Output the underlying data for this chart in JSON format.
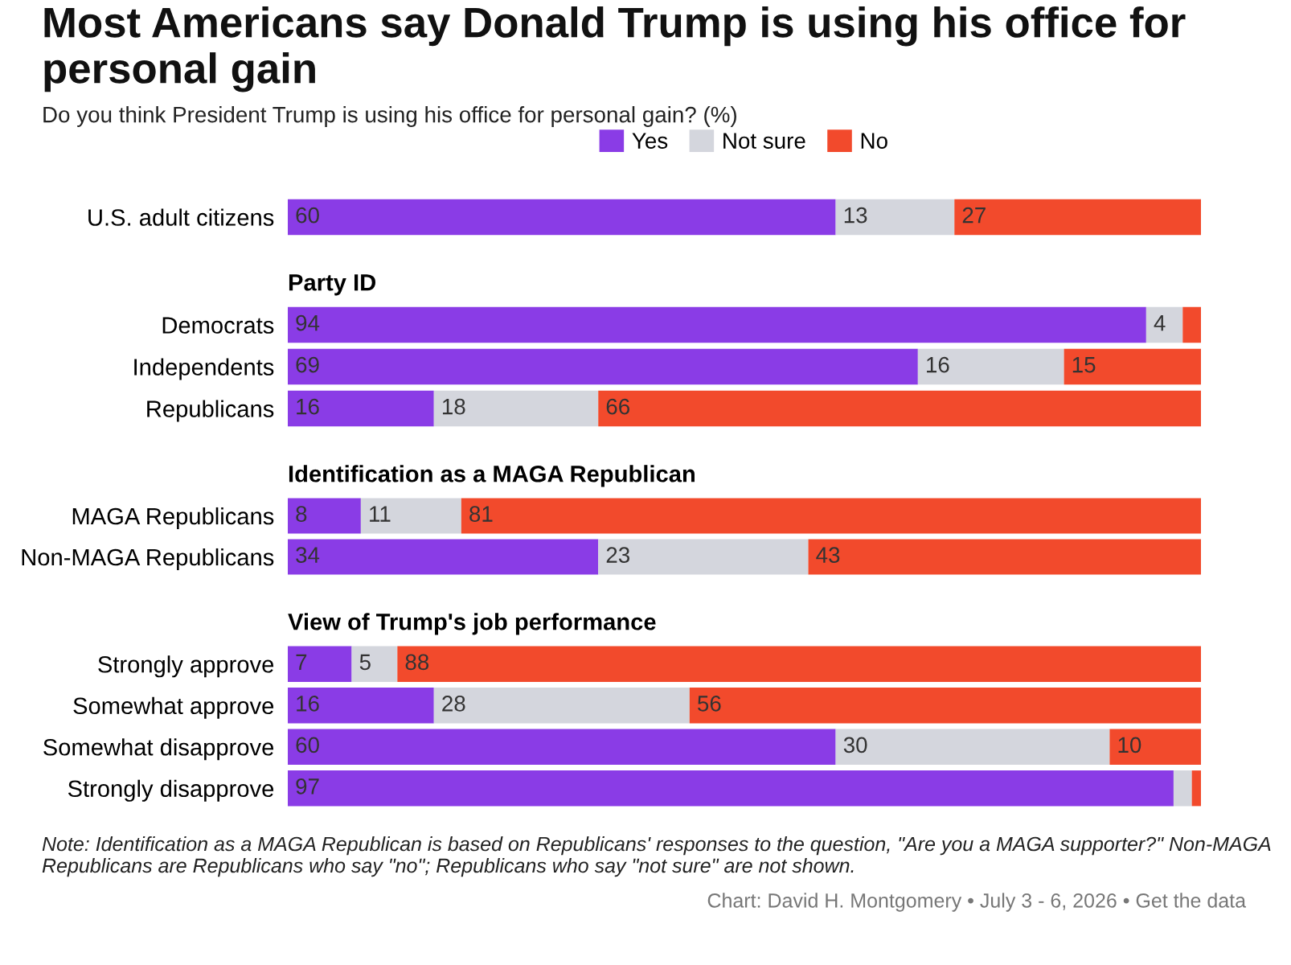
{
  "chart_data": [
    {
      "type": "bar",
      "orientation": "horizontal",
      "stacked": true,
      "title": "Most Americans say Donald Trump is using his office for personal gain",
      "subtitle": "Do you think President Trump is using his office for personal gain? (%)",
      "legend": "top",
      "tick_labels": "y",
      "xlim": [
        0,
        100
      ],
      "categories": [
        "U.S. adult citizens"
      ],
      "series": [
        {
          "name": "Yes",
          "color": "#8a3ce6",
          "values": [
            60
          ],
          "value_labels": [
            "60"
          ]
        },
        {
          "name": "Not sure",
          "color": "#d4d6dd",
          "values": [
            13
          ],
          "value_labels": [
            "13"
          ]
        },
        {
          "name": "No",
          "color": "#f24a2c",
          "values": [
            27
          ],
          "value_labels": [
            "27"
          ]
        }
      ]
    },
    {
      "type": "bar",
      "orientation": "horizontal",
      "stacked": true,
      "title": "Party ID",
      "tick_labels": "y",
      "xlim": [
        0,
        100
      ],
      "categories": [
        "Democrats",
        "Independents",
        "Republicans"
      ],
      "series": [
        {
          "color": "#8a3ce6",
          "values": [
            94,
            69,
            16
          ],
          "value_labels": [
            "94",
            "69",
            "16"
          ]
        },
        {
          "color": "#d4d6dd",
          "values": [
            4,
            16,
            18
          ],
          "value_labels": [
            "4",
            "16",
            "18"
          ]
        },
        {
          "color": "#f24a2c",
          "values": [
            2,
            15,
            66
          ],
          "value_labels": [
            null,
            "15",
            "66"
          ]
        }
      ]
    },
    {
      "type": "bar",
      "orientation": "horizontal",
      "stacked": true,
      "title": "Identification as a MAGA Republican",
      "tick_labels": "y",
      "xlim": [
        0,
        100
      ],
      "categories": [
        "MAGA Republicans",
        "Non-MAGA Republicans"
      ],
      "series": [
        {
          "color": "#8a3ce6",
          "values": [
            8,
            34
          ],
          "value_labels": [
            "8",
            "34"
          ]
        },
        {
          "color": "#d4d6dd",
          "values": [
            11,
            23
          ],
          "value_labels": [
            "11",
            "23"
          ]
        },
        {
          "color": "#f24a2c",
          "values": [
            81,
            43
          ],
          "value_labels": [
            "81",
            "43"
          ]
        }
      ]
    },
    {
      "type": "bar",
      "orientation": "horizontal",
      "stacked": true,
      "title": "View of Trump's job performance",
      "tick_labels": "y",
      "xlim": [
        0,
        100
      ],
      "categories": [
        "Strongly approve",
        "Somewhat approve",
        "Somewhat disapprove",
        "Strongly disapprove"
      ],
      "series": [
        {
          "color": "#8a3ce6",
          "values": [
            7,
            16,
            60,
            97
          ],
          "value_labels": [
            "7",
            "16",
            "60",
            "97"
          ]
        },
        {
          "color": "#d4d6dd",
          "values": [
            5,
            28,
            30,
            2
          ],
          "value_labels": [
            "5",
            "28",
            "30",
            null
          ]
        },
        {
          "color": "#f24a2c",
          "values": [
            88,
            56,
            10,
            1
          ],
          "value_labels": [
            "88",
            "56",
            "10",
            null
          ]
        }
      ],
      "annotations": [
        "Note: Identification as a MAGA Republican is based on Republicans' responses to the question, \"Are you a MAGA supporter?\" Non-MAGA Republicans are Republicans who say \"no\"; Republicans who say \"not sure\" are not shown.",
        "Chart: David H. Montgomery • July 3 - 6, 2026 • Get the data"
      ]
    }
  ]
}
